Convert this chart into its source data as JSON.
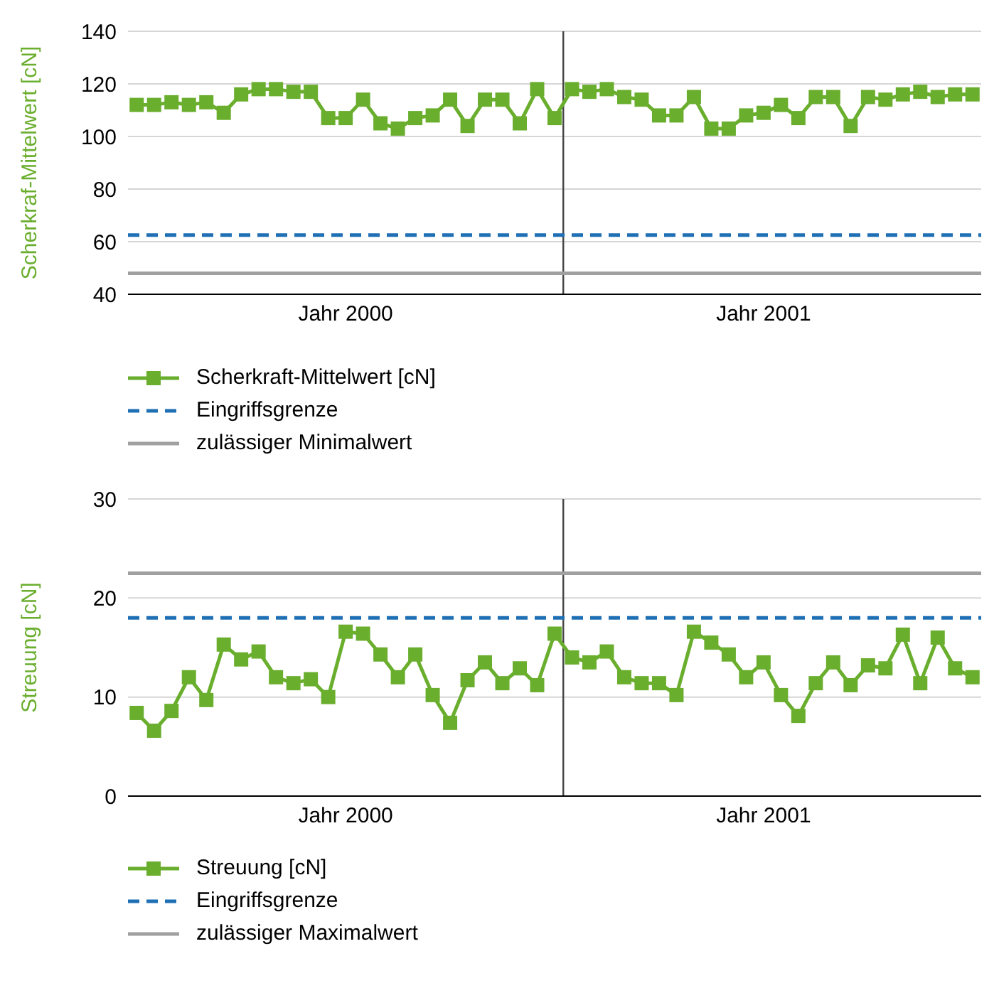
{
  "chart_data": [
    {
      "type": "line",
      "ylabel": "Scherkraf-Mittelwert [cN]",
      "categories": [
        null,
        null,
        null,
        null,
        null,
        null,
        null,
        null,
        null,
        null,
        null,
        null,
        "Jahr 2000",
        null,
        null,
        null,
        null,
        null,
        null,
        null,
        null,
        null,
        null,
        null,
        null,
        null,
        null,
        null,
        null,
        null,
        null,
        null,
        null,
        null,
        null,
        null,
        "Jahr 2001",
        null,
        null,
        null,
        null,
        null,
        null,
        null,
        null,
        null,
        null,
        null,
        null
      ],
      "series": [
        {
          "name": "Scherkraft-Mittelwert [cN]",
          "color": "#6aae2e",
          "values": [
            112,
            112,
            113,
            112,
            113,
            109,
            116,
            118,
            118,
            117,
            117,
            107,
            107,
            114,
            105,
            103,
            107,
            108,
            114,
            104,
            114,
            114,
            105,
            118,
            107,
            118,
            117,
            118,
            115,
            114,
            108,
            108,
            115,
            103,
            103,
            108,
            109,
            112,
            107,
            115,
            115,
            104,
            115,
            114,
            116,
            117,
            115,
            116,
            116
          ]
        }
      ],
      "ref_lines": [
        {
          "axis": "y",
          "value": 62.5,
          "label": "Eingriffsgrenze",
          "color": "#1f6fb5",
          "line_style": "dashed"
        },
        {
          "axis": "y",
          "value": 48,
          "label": "zulässiger Minimalwert",
          "color": "#a0a0a0",
          "line_style": "solid"
        }
      ],
      "ylim": [
        40,
        140
      ],
      "yticks": [
        40,
        60,
        80,
        100,
        120,
        140
      ],
      "grid": "y",
      "legend": "bottom",
      "marker": "square",
      "line_style": "solid"
    },
    {
      "type": "line",
      "ylabel": "Streuung [cN]",
      "categories": [
        null,
        null,
        null,
        null,
        null,
        null,
        null,
        null,
        null,
        null,
        null,
        null,
        "Jahr 2000",
        null,
        null,
        null,
        null,
        null,
        null,
        null,
        null,
        null,
        null,
        null,
        null,
        null,
        null,
        null,
        null,
        null,
        null,
        null,
        null,
        null,
        null,
        null,
        "Jahr 2001",
        null,
        null,
        null,
        null,
        null,
        null,
        null,
        null,
        null,
        null,
        null,
        null
      ],
      "series": [
        {
          "name": "Streuung [cN]",
          "color": "#6aae2e",
          "values": [
            8.4,
            6.6,
            8.6,
            12.0,
            9.7,
            15.3,
            13.8,
            14.6,
            12.0,
            11.4,
            11.8,
            10.0,
            16.6,
            16.4,
            14.3,
            12.0,
            14.3,
            10.2,
            7.4,
            11.7,
            13.5,
            11.4,
            12.9,
            11.2,
            16.4,
            14.0,
            13.5,
            14.6,
            12.0,
            11.4,
            11.4,
            10.2,
            16.6,
            15.5,
            14.3,
            12.0,
            13.5,
            10.2,
            8.1,
            11.4,
            13.5,
            11.2,
            13.2,
            12.9,
            16.3,
            11.4,
            16.0,
            12.9,
            12.0
          ]
        }
      ],
      "ref_lines": [
        {
          "axis": "y",
          "value": 18,
          "label": "Eingriffsgrenze",
          "color": "#1f6fb5",
          "line_style": "dashed"
        },
        {
          "axis": "y",
          "value": 22.5,
          "label": "zulässiger Maximalwert",
          "color": "#a0a0a0",
          "line_style": "solid"
        }
      ],
      "ylim": [
        0,
        30
      ],
      "yticks": [
        0,
        10,
        20,
        30
      ],
      "grid": "y",
      "legend": "bottom",
      "marker": "square",
      "line_style": "solid"
    }
  ]
}
